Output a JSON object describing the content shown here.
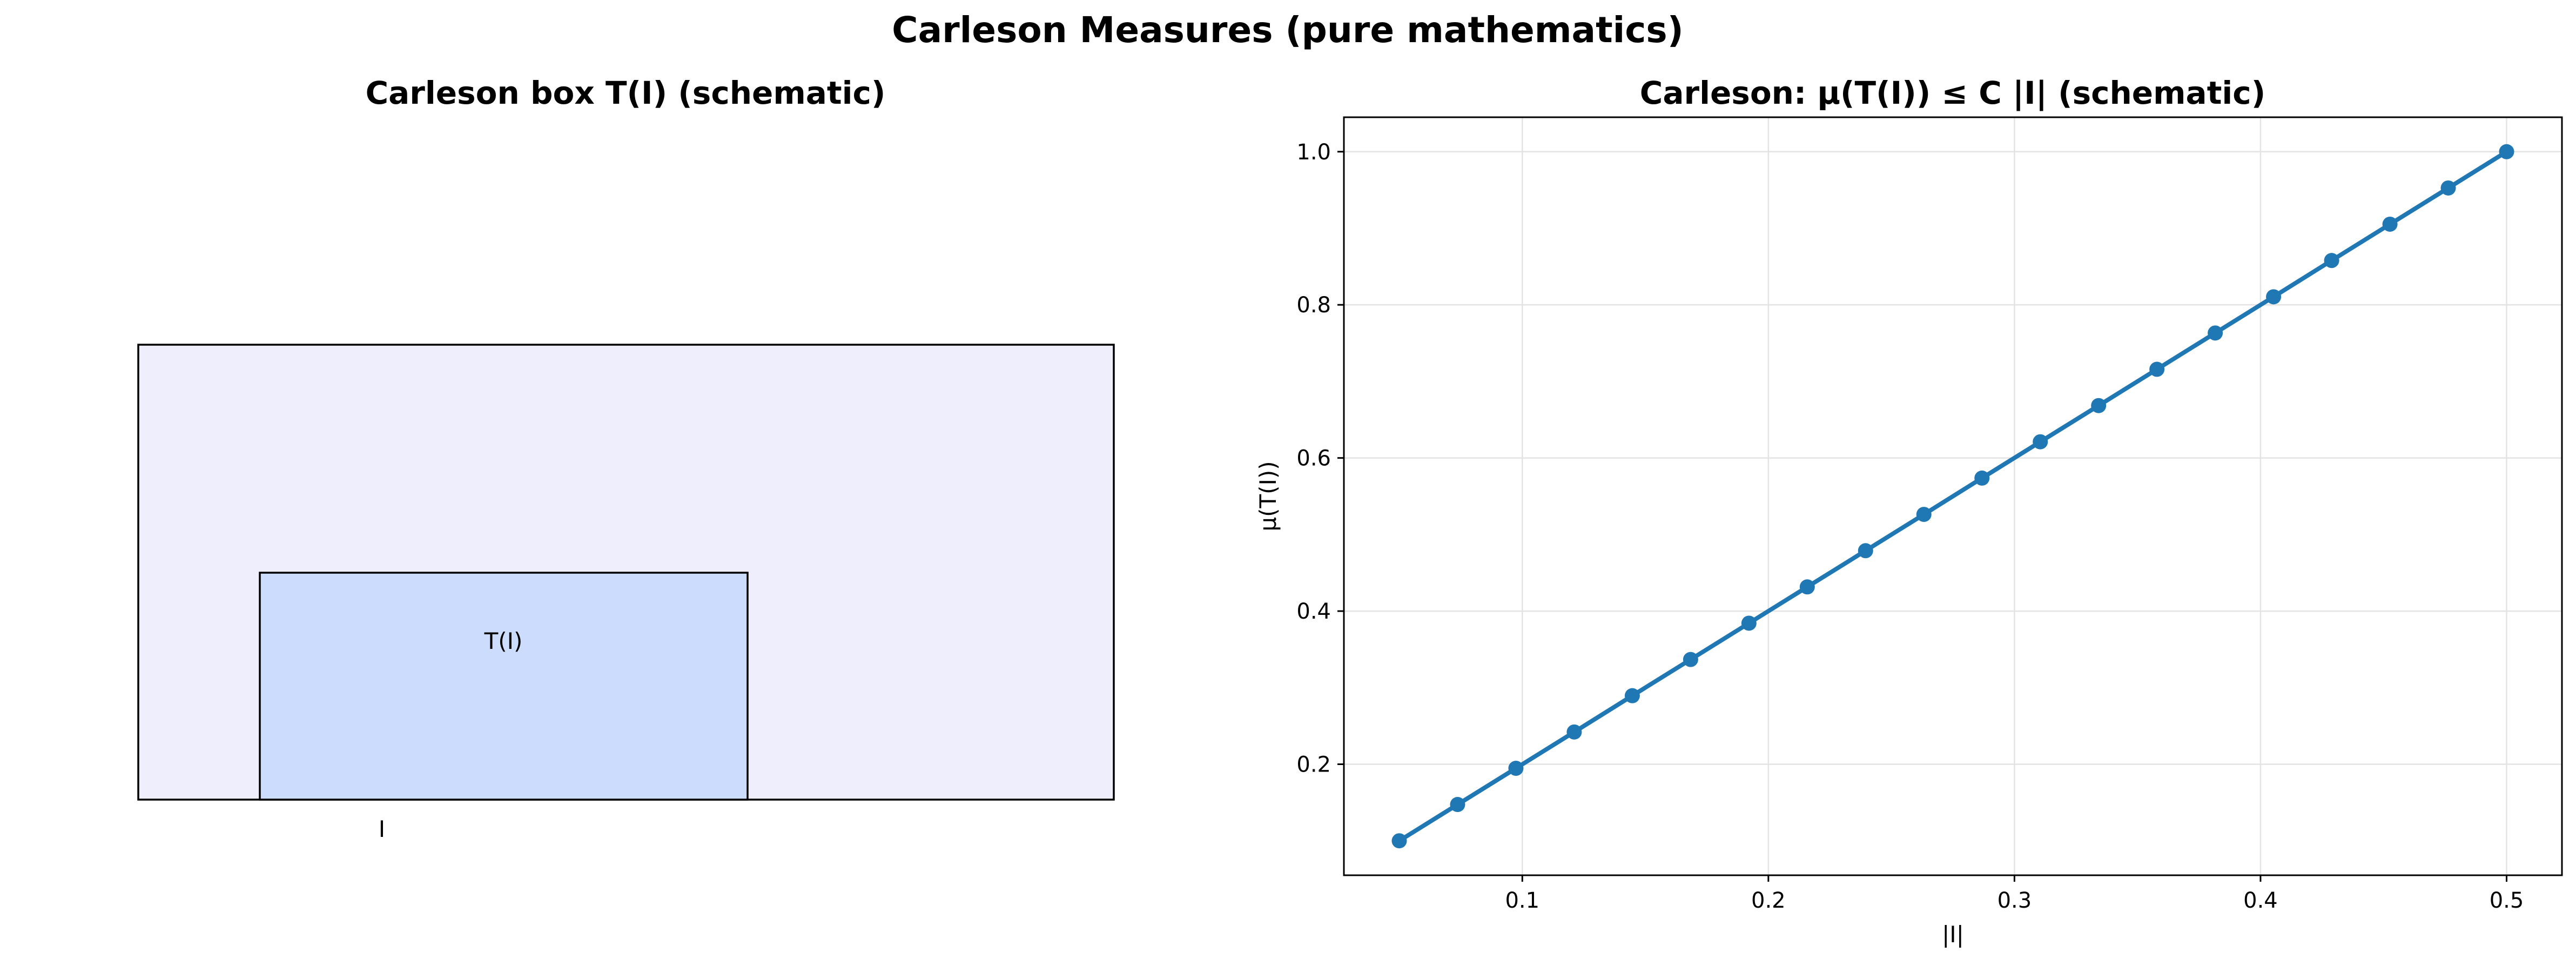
{
  "figure": {
    "suptitle": "Carleson Measures (pure mathematics)"
  },
  "chart_data": [
    {
      "type": "diagram",
      "title": "Carleson box T(I) (schematic)",
      "labels": {
        "box": "T(I)",
        "interval": "I"
      },
      "colors": {
        "outer_fill": "#eeeefc",
        "box_fill": "#ccdcfd",
        "stroke": "#000000"
      }
    },
    {
      "type": "line",
      "title": "Carleson: μ(T(I)) ≤ C |I| (schematic)",
      "xlabel": "|I|",
      "ylabel": "μ(T(I))",
      "xlim": [
        0.0275,
        0.5225
      ],
      "ylim": [
        0.055,
        1.045
      ],
      "xticks": [
        0.1,
        0.2,
        0.3,
        0.4,
        0.5
      ],
      "yticks": [
        0.2,
        0.4,
        0.6,
        0.8,
        1.0
      ],
      "xtick_labels": [
        "0.1",
        "0.2",
        "0.3",
        "0.4",
        "0.5"
      ],
      "ytick_labels": [
        "0.2",
        "0.4",
        "0.6",
        "0.8",
        "1.0"
      ],
      "grid": true,
      "series": [
        {
          "color": "#1f77b4",
          "marker": "circle",
          "x": [
            0.05,
            0.0737,
            0.0974,
            0.1211,
            0.1447,
            0.1684,
            0.1921,
            0.2158,
            0.2395,
            0.2632,
            0.2868,
            0.3105,
            0.3342,
            0.3579,
            0.3816,
            0.4053,
            0.4289,
            0.4526,
            0.4763,
            0.5
          ],
          "y": [
            0.1,
            0.1474,
            0.1947,
            0.2421,
            0.2895,
            0.3368,
            0.3842,
            0.4316,
            0.4789,
            0.5263,
            0.5737,
            0.6211,
            0.6684,
            0.7158,
            0.7632,
            0.8105,
            0.8579,
            0.9053,
            0.9526,
            1.0
          ]
        }
      ]
    }
  ]
}
